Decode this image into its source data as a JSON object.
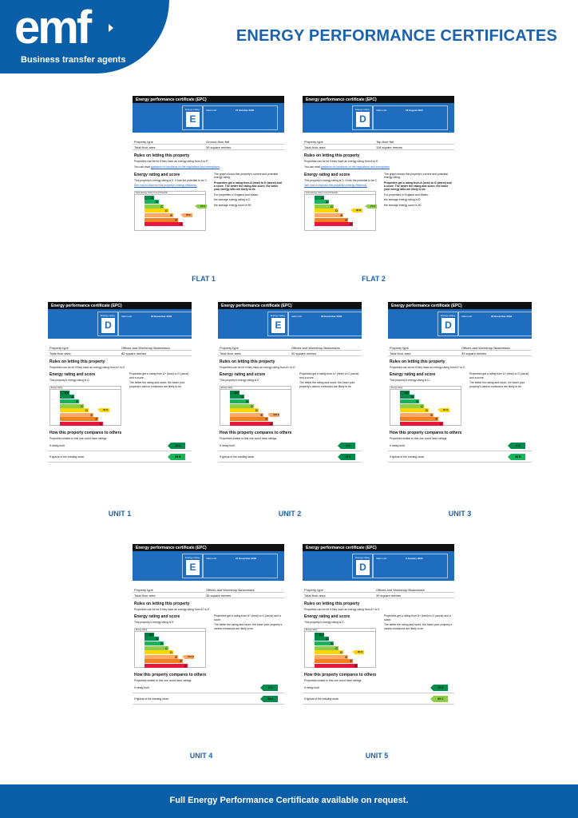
{
  "header": {
    "brand": "emf",
    "tagline": "Business transfer agents",
    "title": "ENERGY PERFORMANCE CERTIFICATES"
  },
  "footer": {
    "text": "Full Energy Performance Certificate available on request."
  },
  "common": {
    "epc_title": "Energy performance certificate (EPC)",
    "energy_rating_label": "Energy rating",
    "valid_until_label": "Valid until:",
    "property_type_label": "Property type",
    "floor_area_label": "Total floor area",
    "rules_heading": "Rules on letting this property",
    "energy_heading": "Energy rating and score",
    "compare_heading": "How this property compares to others",
    "compare_intro": "Properties similar to this one could have ratings:",
    "newly_built": "If newly built",
    "typical_stock": "If typical of the existing stock"
  },
  "bands": [
    "A+",
    "A",
    "B",
    "C",
    "D",
    "E",
    "F",
    "G"
  ],
  "colors": {
    "A+": "#007f3d",
    "A": "#008c4a",
    "B": "#19b459",
    "C": "#8dce46",
    "D": "#ffd500",
    "E": "#fcaa65",
    "F": "#ef8023",
    "G": "#e9153b",
    "blue": "#1f6dbf",
    "accent": "#1a62ad"
  },
  "certificates": [
    {
      "label": "FLAT 1",
      "rating": "E",
      "valid_until": "27 October 2030",
      "property_type": "Ground-floor flat",
      "floor_area": "39 square metres",
      "rules_text": "Properties can be let if they have an energy rating from A to E.",
      "rules_link_intro": "You can read",
      "rules_link": "guidance for landlords on the regulations and exemptions",
      "rating_text": "This property's energy rating is E. It has the potential to be C.",
      "improve_link": "See how to improve this property's energy efficiency.",
      "graph_text": "The graph shows this property's current and potential energy rating.",
      "scale_text": "Properties get a rating from A (best) to G (worst) and a score. The better the rating and score, the lower your energy bills are likely to be.",
      "region_text": "For properties in England and Wales:",
      "avg1": "the average energy rating is D",
      "avg2": "the average energy score is 60",
      "current": "E",
      "potential": "C",
      "current_score": "50 E",
      "potential_score": "74 C"
    },
    {
      "label": "FLAT 2",
      "rating": "D",
      "valid_until": "18 August 2031",
      "property_type": "Top-floor flat",
      "floor_area": "118 square metres",
      "rules_text": "Properties can be let if they have an energy rating from A to E.",
      "rules_link_intro": "You can read",
      "rules_link": "guidance for landlords on the regulations and exemptions",
      "rating_text": "This property's energy rating is D. It has the potential to be C.",
      "improve_link": "See how to improve this property's energy efficiency.",
      "graph_text": "The graph shows this property's current and potential energy rating.",
      "scale_text": "Properties get a rating from A (best) to G (worst) and a score. The better the rating and score, the lower your energy bills are likely to be.",
      "region_text": "For properties in England and Wales:",
      "avg1": "the average energy rating is D",
      "avg2": "the average energy score is 60",
      "current": "D",
      "potential": "C",
      "current_score": "60 D",
      "potential_score": "71 C"
    },
    {
      "label": "UNIT 1",
      "rating": "D",
      "valid_until": "29 December 2032",
      "property_type": "Offices and Workshop Businesses",
      "floor_area": "82 square metres",
      "rules_text": "Properties can be let if they have an energy rating from A+ to E.",
      "rating_text": "This property's energy rating is D.",
      "scale_text": "Properties get a rating from A+ (best) to G (worst) and a score.",
      "scale_text2": "The better the rating and score, the lower your property's carbon emissions are likely to be.",
      "current": "D",
      "current_score": "90 D",
      "newly_score": "18 A",
      "newly_band": "A",
      "typical_score": "66 B",
      "typical_band": "B"
    },
    {
      "label": "UNIT 2",
      "rating": "E",
      "valid_until": "29 December 2032",
      "property_type": "Offices and Workshop Businesses",
      "floor_area": "30 square metres",
      "rules_text": "Properties can be let if they have an energy rating from A+ to E.",
      "rating_text": "This property's energy rating is E.",
      "scale_text": "Properties get a rating from A+ (best) to G (worst) and a score.",
      "scale_text2": "The better the rating and score, the lower your property's carbon emissions are likely to be.",
      "current": "E",
      "current_score": "106 E",
      "newly_score": "4 A",
      "newly_band": "A",
      "typical_score": "15 A",
      "typical_band": "A"
    },
    {
      "label": "UNIT 3",
      "rating": "D",
      "valid_until": "29 December 2032",
      "property_type": "Offices and Workshop Businesses",
      "floor_area": "39 square metres",
      "rules_text": "Properties can be let if they have an energy rating from A+ to E.",
      "rating_text": "This property's energy rating is D.",
      "scale_text": "Properties get a rating from A+ (best) to G (worst) and a score.",
      "scale_text2": "The better the rating and score, the lower your property's carbon emissions are likely to be.",
      "current": "D",
      "current_score": "84 D",
      "newly_score": "6 A",
      "newly_band": "A",
      "typical_score": "66 B",
      "typical_band": "B"
    },
    {
      "label": "UNIT 4",
      "rating": "E",
      "valid_until": "21 December 2030",
      "property_type": "Offices and Workshop Businesses",
      "floor_area": "35 square metres",
      "rules_text": "Properties can be let if they have an energy rating from A+ to E.",
      "rating_text": "This property's energy rating is E.",
      "scale_text": "Properties get a rating from A+ (best) to G (worst) and a score.",
      "scale_text2": "The better the rating and score, the lower your property's carbon emissions are likely to be.",
      "current": "E",
      "current_score": "104 E",
      "newly_score": "8 A",
      "newly_band": "A",
      "typical_score": "24 A",
      "typical_band": "A"
    },
    {
      "label": "UNIT 5",
      "rating": "D",
      "valid_until": "3 January 2033",
      "property_type": "Offices and Workshop Businesses",
      "floor_area": "39 square metres",
      "rules_text": "Properties can be let if they have an energy rating from A+ to E.",
      "rating_text": "This property's energy rating is D.",
      "scale_text": "Properties get a rating from A+ (best) to G (worst) and a score.",
      "scale_text2": "The better the rating and score, the lower your property's carbon emissions are likely to be.",
      "current": "D",
      "current_score": "90 D",
      "newly_score": "25 A",
      "newly_band": "A",
      "typical_score": "69 C",
      "typical_band": "C"
    }
  ]
}
